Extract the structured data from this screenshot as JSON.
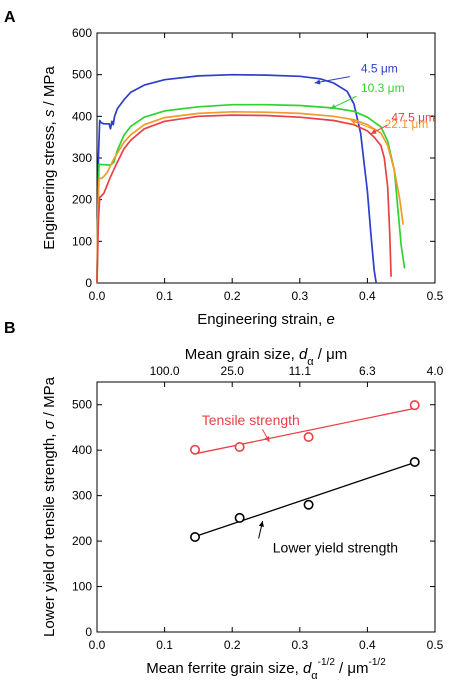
{
  "chart_data": [
    {
      "panel_label": "A",
      "type": "line",
      "xlabel_main": "Engineering strain, ",
      "xlabel_var": "e",
      "ylabel_main": "Engineering stress, ",
      "ylabel_var": "s",
      "ylabel_unit": " / MPa",
      "xlim": [
        0,
        0.5
      ],
      "ylim": [
        0,
        600
      ],
      "xticks": [
        "0.0",
        "0.1",
        "0.2",
        "0.3",
        "0.4",
        "0.5"
      ],
      "yticks": [
        "0",
        "100",
        "200",
        "300",
        "400",
        "500",
        "600"
      ],
      "grid": false,
      "series": [
        {
          "name": "4.5 μm",
          "color": "#2c3fc8",
          "points": [
            [
              0,
              0
            ],
            [
              0.001,
              120
            ],
            [
              0.002,
              300
            ],
            [
              0.004,
              390
            ],
            [
              0.006,
              385
            ],
            [
              0.01,
              382
            ],
            [
              0.018,
              382
            ],
            [
              0.02,
              370
            ],
            [
              0.022,
              388
            ],
            [
              0.024,
              380
            ],
            [
              0.026,
              400
            ],
            [
              0.03,
              418
            ],
            [
              0.04,
              440
            ],
            [
              0.05,
              458
            ],
            [
              0.07,
              475
            ],
            [
              0.1,
              488
            ],
            [
              0.15,
              497
            ],
            [
              0.2,
              500
            ],
            [
              0.25,
              499
            ],
            [
              0.3,
              496
            ],
            [
              0.33,
              490
            ],
            [
              0.35,
              480
            ],
            [
              0.37,
              460
            ],
            [
              0.38,
              430
            ],
            [
              0.39,
              360
            ],
            [
              0.4,
              220
            ],
            [
              0.405,
              120
            ],
            [
              0.41,
              30
            ],
            [
              0.413,
              0
            ]
          ]
        },
        {
          "name": "10.3 μm",
          "color": "#2fd32f",
          "points": [
            [
              0,
              0
            ],
            [
              0.001,
              150
            ],
            [
              0.003,
              285
            ],
            [
              0.02,
              283
            ],
            [
              0.025,
              290
            ],
            [
              0.03,
              318
            ],
            [
              0.04,
              355
            ],
            [
              0.05,
              376
            ],
            [
              0.07,
              398
            ],
            [
              0.1,
              413
            ],
            [
              0.15,
              423
            ],
            [
              0.2,
              428
            ],
            [
              0.25,
              428
            ],
            [
              0.3,
              426
            ],
            [
              0.35,
              420
            ],
            [
              0.38,
              412
            ],
            [
              0.4,
              398
            ],
            [
              0.42,
              375
            ],
            [
              0.43,
              340
            ],
            [
              0.44,
              270
            ],
            [
              0.445,
              180
            ],
            [
              0.45,
              90
            ],
            [
              0.455,
              35
            ]
          ]
        },
        {
          "name": "22.1 μm",
          "color": "#f19a2a",
          "points": [
            [
              0,
              0
            ],
            [
              0.001,
              150
            ],
            [
              0.003,
              250
            ],
            [
              0.008,
              252
            ],
            [
              0.015,
              265
            ],
            [
              0.025,
              298
            ],
            [
              0.04,
              338
            ],
            [
              0.05,
              356
            ],
            [
              0.07,
              380
            ],
            [
              0.1,
              397
            ],
            [
              0.15,
              407
            ],
            [
              0.2,
              411
            ],
            [
              0.25,
              410
            ],
            [
              0.3,
              407
            ],
            [
              0.35,
              400
            ],
            [
              0.38,
              392
            ],
            [
              0.4,
              380
            ],
            [
              0.42,
              360
            ],
            [
              0.43,
              330
            ],
            [
              0.44,
              270
            ],
            [
              0.448,
              200
            ],
            [
              0.453,
              140
            ]
          ]
        },
        {
          "name": "47.5 μm",
          "color": "#e84145",
          "points": [
            [
              0,
              0
            ],
            [
              0.002,
              150
            ],
            [
              0.004,
              205
            ],
            [
              0.01,
              215
            ],
            [
              0.02,
              255
            ],
            [
              0.03,
              290
            ],
            [
              0.04,
              322
            ],
            [
              0.05,
              343
            ],
            [
              0.07,
              370
            ],
            [
              0.1,
              388
            ],
            [
              0.15,
              400
            ],
            [
              0.2,
              403
            ],
            [
              0.25,
              402
            ],
            [
              0.3,
              398
            ],
            [
              0.35,
              390
            ],
            [
              0.38,
              380
            ],
            [
              0.4,
              365
            ],
            [
              0.41,
              350
            ],
            [
              0.42,
              330
            ],
            [
              0.425,
              300
            ],
            [
              0.43,
              230
            ],
            [
              0.433,
              120
            ],
            [
              0.435,
              15
            ]
          ]
        }
      ],
      "annotations": [
        {
          "text": "4.5 μm",
          "color": "#2c3fc8",
          "x": 0.445,
          "y": 505,
          "arrow_to": [
            0.322,
            480
          ]
        },
        {
          "text": "10.3 μm",
          "color": "#2fd32f",
          "x": 0.455,
          "y": 458,
          "arrow_to": [
            0.345,
            418
          ]
        },
        {
          "text": "22.1 μm",
          "color": "#f19a2a",
          "x": 0.49,
          "y": 372,
          "arrow_to": [
            0.375,
            391
          ]
        },
        {
          "text": "47.5 μm",
          "color": "#e84145",
          "x": 0.5,
          "y": 388,
          "arrow_to": [
            0.405,
            358
          ]
        }
      ]
    },
    {
      "panel_label": "B",
      "type": "scatter",
      "xlabel_main": "Mean ferrite grain size, ",
      "xlabel_var": "d",
      "xlabel_sub": "α",
      "xlabel_sup1": "-1/2",
      "xlabel_mid": " / μm",
      "xlabel_sup2": "-1/2",
      "top_xlabel_main": "Mean grain size, ",
      "top_xlabel_var": "d",
      "top_xlabel_sub": "α",
      "top_xlabel_unit": " / μm",
      "top_xticks": [
        {
          "label": "100.0",
          "at": 0.1
        },
        {
          "label": "25.0",
          "at": 0.2
        },
        {
          "label": "11.1",
          "at": 0.3
        },
        {
          "label": "6.3",
          "at": 0.4
        },
        {
          "label": "4.0",
          "at": 0.5
        }
      ],
      "ylabel_main": "Lower yield or tensile strength, ",
      "ylabel_var": "σ",
      "ylabel_unit": " / MPa",
      "xlim": [
        0,
        0.5
      ],
      "ylim": [
        0,
        550
      ],
      "xticks": [
        "0.0",
        "0.1",
        "0.2",
        "0.3",
        "0.4",
        "0.5"
      ],
      "yticks": [
        "0",
        "100",
        "200",
        "300",
        "400",
        "500"
      ],
      "grid": false,
      "series": [
        {
          "name": "Tensile strength",
          "color": "#e84145",
          "x": [
            0.145,
            0.211,
            0.313,
            0.47
          ],
          "y": [
            401,
            407,
            429,
            499
          ],
          "fit": [
            [
              0.145,
              392
            ],
            [
              0.47,
              492
            ]
          ]
        },
        {
          "name": "Lower yield strength",
          "color": "#000000",
          "x": [
            0.145,
            0.211,
            0.313,
            0.47
          ],
          "y": [
            209,
            251,
            280,
            374
          ],
          "fit": [
            [
              0.145,
              210
            ],
            [
              0.47,
              373
            ]
          ]
        }
      ],
      "annotations": [
        {
          "text": "Tensile strength",
          "color": "#e84145",
          "x": 0.155,
          "y": 455,
          "arrow_to": [
            0.255,
            418
          ]
        },
        {
          "text": "Lower yield strength",
          "color": "#000000",
          "x": 0.26,
          "y": 175,
          "arrow_to": [
            0.245,
            244
          ]
        }
      ]
    }
  ]
}
